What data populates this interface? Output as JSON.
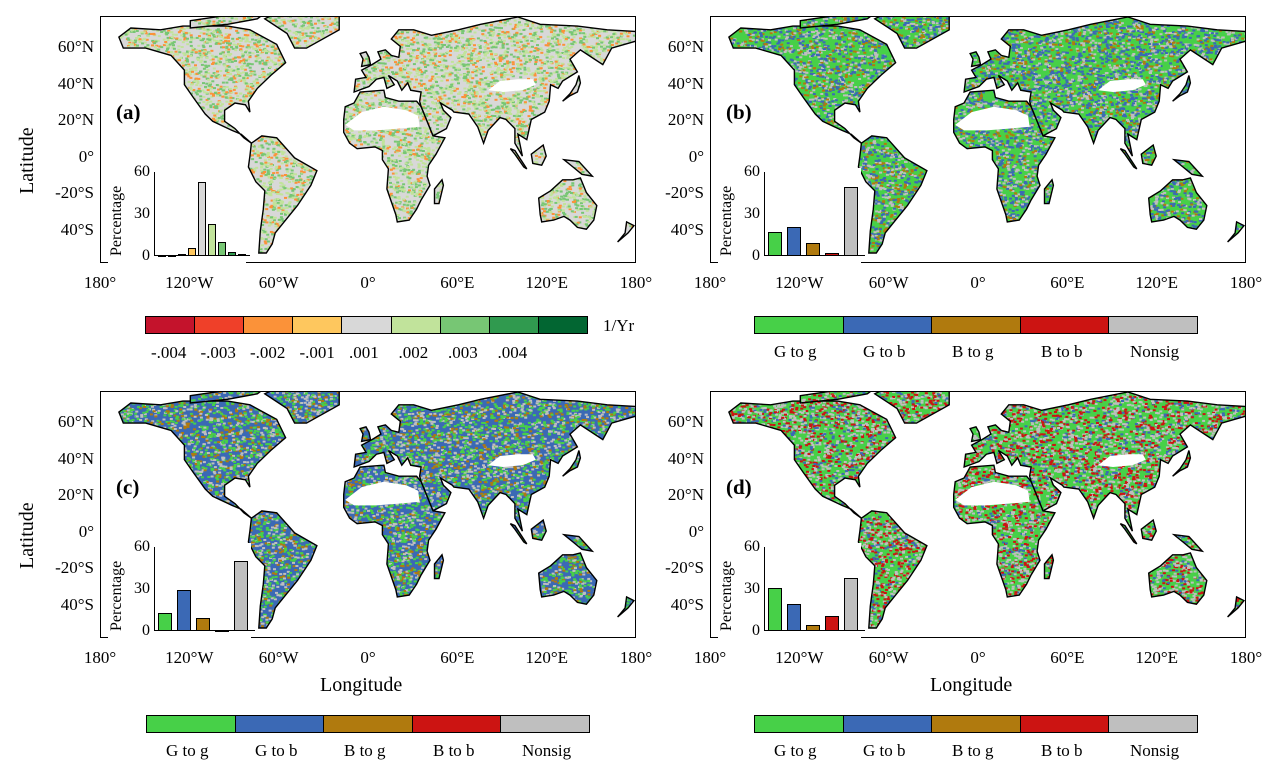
{
  "axes": {
    "lat_ticks": [
      "60°N",
      "40°N",
      "20°N",
      "0°",
      "-20°S",
      "40°S"
    ],
    "lon_ticks": [
      "180°",
      "120°W",
      "60°W",
      "0°",
      "60°E",
      "120°E",
      "180°"
    ],
    "ylabel": "Latitude",
    "xlabel": "Longitude"
  },
  "panels": [
    {
      "label": "(a)",
      "inset_title": "Percentage",
      "inset_yticks": [
        "60",
        "30",
        "0"
      ],
      "bars": [
        0.5,
        0.5,
        1.5,
        5.5,
        53,
        23,
        10,
        3,
        1.5
      ],
      "bar_colors": [
        "#c4132c",
        "#ef4029",
        "#fb9239",
        "#fec75e",
        "#d8d8d8",
        "#c1e39b",
        "#77c674",
        "#309a4f",
        "#026632"
      ]
    },
    {
      "label": "(b)",
      "inset_title": "Percentage",
      "inset_yticks": [
        "60",
        "30",
        "0"
      ],
      "bars": [
        17,
        21,
        9,
        2,
        49
      ],
      "bar_colors": [
        "#47d048",
        "#3b69b5",
        "#b07a0e",
        "#cc1412",
        "#bfbfbf"
      ]
    },
    {
      "label": "(c)",
      "inset_title": "Percentage",
      "inset_yticks": [
        "60",
        "30",
        "0"
      ],
      "bars": [
        13,
        29,
        9,
        1,
        50
      ],
      "bar_colors": [
        "#47d048",
        "#3b69b5",
        "#b07a0e",
        "#cc1412",
        "#bfbfbf"
      ]
    },
    {
      "label": "(d)",
      "inset_title": "Percentage",
      "inset_yticks": [
        "60",
        "30",
        "0"
      ],
      "bars": [
        31,
        19,
        4,
        11,
        38
      ],
      "bar_colors": [
        "#47d048",
        "#3b69b5",
        "#b07a0e",
        "#cc1412",
        "#bfbfbf"
      ]
    }
  ],
  "legend_trend": {
    "colors": [
      "#c4132c",
      "#ef4029",
      "#fb9239",
      "#fec75e",
      "#d8d8d8",
      "#c1e39b",
      "#77c674",
      "#309a4f",
      "#026632"
    ],
    "labels": [
      "-.004",
      "-.003",
      "-.002",
      "-.001",
      ".001",
      ".002",
      ".003",
      ".004"
    ],
    "unit": "1/Yr"
  },
  "legend_class": {
    "colors": [
      "#47d048",
      "#3b69b5",
      "#b07a0e",
      "#cc1412",
      "#bfbfbf"
    ],
    "labels": [
      "G to g",
      "G to b",
      "B to g",
      "B to b",
      "Nonsig"
    ]
  },
  "map_colors": {
    "a": [
      "#d8d8d8",
      "#c1e39b",
      "#77c674",
      "#fb9239"
    ],
    "b": [
      "#47d048",
      "#3b69b5",
      "#bfbfbf",
      "#b07a0e"
    ],
    "c": [
      "#3b69b5",
      "#47d048",
      "#bfbfbf",
      "#b07a0e"
    ],
    "d": [
      "#47d048",
      "#bfbfbf",
      "#cc1412",
      "#3b69b5"
    ]
  }
}
